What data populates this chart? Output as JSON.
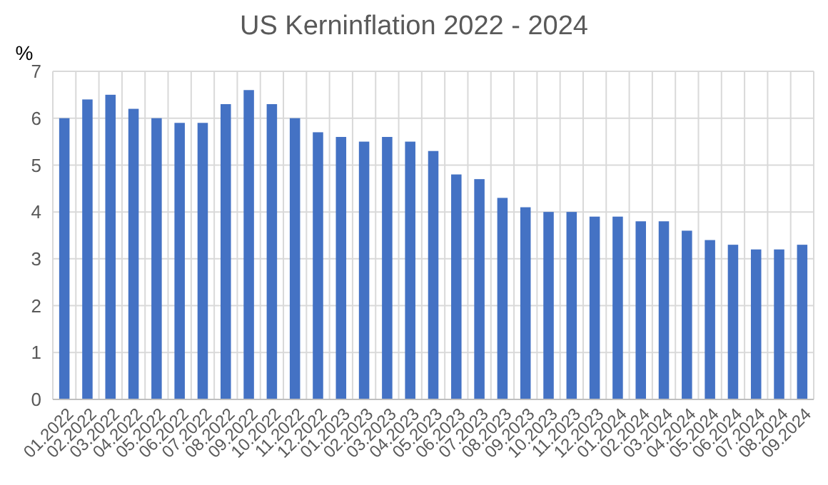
{
  "chart_data": {
    "type": "bar",
    "title": "US Kerninflation 2022 - 2024",
    "ylabel": "%",
    "categories": [
      "01.2022",
      "02.2022",
      "03.2022",
      "04.2022",
      "05.2022",
      "06.2022",
      "07.2022",
      "08.2022",
      "09.2022",
      "10.2022",
      "11.2022",
      "12.2022",
      "01.2023",
      "02.2023",
      "03.2023",
      "04.2023",
      "05.2023",
      "06.2023",
      "07.2023",
      "08.2023",
      "09.2023",
      "10.2023",
      "11.2023",
      "12.2023",
      "01.2024",
      "02.2024",
      "03.2024",
      "04.2024",
      "05.2024",
      "06.2024",
      "07.2024",
      "08.2024",
      "09.2024"
    ],
    "values": [
      6.0,
      6.4,
      6.5,
      6.2,
      6.0,
      5.9,
      5.9,
      6.3,
      6.6,
      6.3,
      6.0,
      5.7,
      5.6,
      5.5,
      5.6,
      5.5,
      5.3,
      4.8,
      4.7,
      4.3,
      4.1,
      4.0,
      4.0,
      3.9,
      3.9,
      3.8,
      3.8,
      3.6,
      3.4,
      3.3,
      3.2,
      3.2,
      3.3
    ],
    "color": "#4472c4",
    "ylim": [
      0,
      7
    ],
    "yticks": [
      0,
      1,
      2,
      3,
      4,
      5,
      6,
      7
    ],
    "grid": true
  }
}
